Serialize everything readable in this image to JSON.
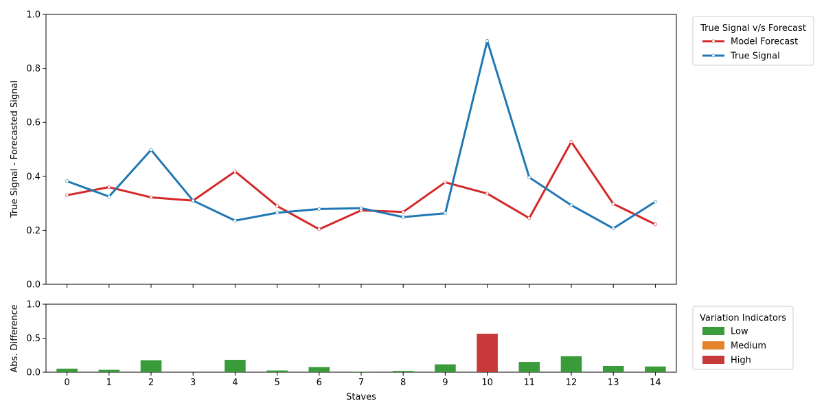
{
  "chart_data": [
    {
      "type": "line",
      "x": [
        0,
        1,
        2,
        3,
        4,
        5,
        6,
        7,
        8,
        9,
        10,
        11,
        12,
        13,
        14
      ],
      "series": [
        {
          "name": "Model Forecast",
          "color": "#d62728",
          "values": [
            0.33,
            0.36,
            0.322,
            0.31,
            0.418,
            0.29,
            0.204,
            0.274,
            0.268,
            0.378,
            0.336,
            0.245,
            0.528,
            0.298,
            0.222
          ]
        },
        {
          "name": "True Signal",
          "color": "#1f77b4",
          "values": [
            0.382,
            0.325,
            0.498,
            0.31,
            0.236,
            0.265,
            0.279,
            0.282,
            0.249,
            0.263,
            0.902,
            0.396,
            0.293,
            0.207,
            0.306
          ]
        }
      ],
      "ylabel": "True Signal - Forecasted Signal",
      "ylim": [
        0,
        1
      ],
      "yticks": [
        "0.0",
        "0.2",
        "0.4",
        "0.6",
        "0.8",
        "1.0"
      ],
      "legend_title": "True Signal v/s Forecast",
      "legend_position": "outside-right"
    },
    {
      "type": "bar",
      "categories": [
        "0",
        "1",
        "2",
        "3",
        "4",
        "5",
        "6",
        "7",
        "8",
        "9",
        "10",
        "11",
        "12",
        "13",
        "14"
      ],
      "values": [
        0.052,
        0.035,
        0.176,
        0.0,
        0.182,
        0.025,
        0.075,
        0.008,
        0.019,
        0.115,
        0.566,
        0.151,
        0.235,
        0.091,
        0.084
      ],
      "levels": [
        "Low",
        "Low",
        "Low",
        "Low",
        "Low",
        "Low",
        "Low",
        "Low",
        "Low",
        "Low",
        "High",
        "Low",
        "Low",
        "Low",
        "Low"
      ],
      "xlabel": "Staves",
      "ylabel": "Abs. Difference",
      "ylim": [
        0,
        1
      ],
      "yticks": [
        "0.0",
        "0.5",
        "1.0"
      ],
      "legend_title": "Variation Indicators",
      "legend_entries": [
        {
          "label": "Low",
          "color": "#2ca02c"
        },
        {
          "label": "Medium",
          "color": "#ff7f0e"
        },
        {
          "label": "High",
          "color": "#d62728"
        }
      ],
      "legend_position": "outside-right"
    }
  ]
}
